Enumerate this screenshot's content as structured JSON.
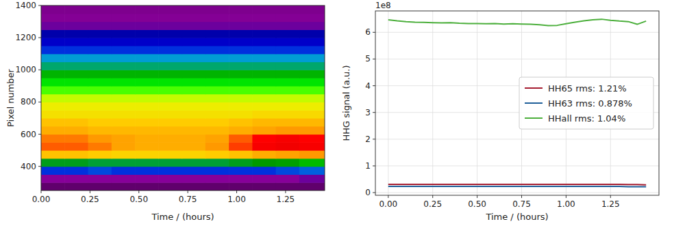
{
  "chart_data": [
    {
      "type": "heatmap",
      "x_label": "Time / (hours)",
      "y_label": "Pixel number",
      "xlim": [
        0,
        1.45
      ],
      "ylim": [
        250,
        1400
      ],
      "xticks": [
        {
          "value": 0,
          "label": "0.00"
        },
        {
          "value": 0.25,
          "label": "0.25"
        },
        {
          "value": 0.5,
          "label": "0.50"
        },
        {
          "value": 0.75,
          "label": "0.75"
        },
        {
          "value": 1,
          "label": "1.00"
        },
        {
          "value": 1.25,
          "label": "1.25"
        }
      ],
      "yticks": [
        400,
        600,
        800,
        1000,
        1200,
        1400
      ],
      "grid": false,
      "zlim": [
        0,
        1
      ],
      "x_edges": [
        0,
        0.12,
        0.24,
        0.36,
        0.48,
        0.6,
        0.72,
        0.84,
        0.96,
        1.08,
        1.2,
        1.32,
        1.45
      ],
      "y_edges": [
        250,
        300,
        350,
        400,
        450,
        500,
        550,
        600,
        650,
        700,
        750,
        800,
        850,
        900,
        950,
        1000,
        1050,
        1100,
        1150,
        1200,
        1250,
        1300,
        1350,
        1400
      ],
      "cells": [
        [
          0.04,
          0.04,
          0.04,
          0.04,
          0.04,
          0.04,
          0.04,
          0.04,
          0.04,
          0.04,
          0.04,
          0.04
        ],
        [
          0.1,
          0.1,
          0.1,
          0.1,
          0.1,
          0.1,
          0.1,
          0.1,
          0.1,
          0.1,
          0.1,
          0.11
        ],
        [
          0.22,
          0.22,
          0.23,
          0.22,
          0.22,
          0.22,
          0.22,
          0.22,
          0.22,
          0.22,
          0.23,
          0.24
        ],
        [
          0.44,
          0.44,
          0.43,
          0.43,
          0.43,
          0.43,
          0.43,
          0.43,
          0.44,
          0.45,
          0.46,
          0.5
        ],
        [
          0.76,
          0.76,
          0.75,
          0.74,
          0.74,
          0.74,
          0.74,
          0.75,
          0.76,
          0.78,
          0.79,
          0.8
        ],
        [
          0.82,
          0.82,
          0.81,
          0.79,
          0.78,
          0.78,
          0.78,
          0.8,
          0.83,
          0.86,
          0.87,
          0.86
        ],
        [
          0.81,
          0.81,
          0.8,
          0.79,
          0.78,
          0.78,
          0.78,
          0.79,
          0.82,
          0.85,
          0.86,
          0.85
        ],
        [
          0.78,
          0.78,
          0.77,
          0.77,
          0.77,
          0.77,
          0.77,
          0.77,
          0.78,
          0.79,
          0.8,
          0.8
        ],
        [
          0.76,
          0.76,
          0.75,
          0.75,
          0.75,
          0.75,
          0.75,
          0.75,
          0.76,
          0.77,
          0.77,
          0.77
        ],
        [
          0.72,
          0.72,
          0.72,
          0.72,
          0.72,
          0.72,
          0.72,
          0.72,
          0.72,
          0.73,
          0.73,
          0.73
        ],
        [
          0.7,
          0.7,
          0.7,
          0.7,
          0.7,
          0.7,
          0.7,
          0.7,
          0.7,
          0.7,
          0.7,
          0.7
        ],
        [
          0.66,
          0.66,
          0.66,
          0.66,
          0.66,
          0.66,
          0.66,
          0.66,
          0.66,
          0.66,
          0.66,
          0.66
        ],
        [
          0.62,
          0.62,
          0.62,
          0.62,
          0.62,
          0.62,
          0.62,
          0.62,
          0.62,
          0.62,
          0.62,
          0.62
        ],
        [
          0.56,
          0.56,
          0.56,
          0.56,
          0.56,
          0.56,
          0.56,
          0.56,
          0.56,
          0.56,
          0.56,
          0.56
        ],
        [
          0.49,
          0.49,
          0.49,
          0.49,
          0.49,
          0.49,
          0.49,
          0.49,
          0.49,
          0.49,
          0.49,
          0.49
        ],
        [
          0.41,
          0.41,
          0.41,
          0.41,
          0.41,
          0.41,
          0.41,
          0.41,
          0.41,
          0.41,
          0.41,
          0.41
        ],
        [
          0.31,
          0.31,
          0.31,
          0.31,
          0.31,
          0.31,
          0.31,
          0.31,
          0.31,
          0.31,
          0.31,
          0.31
        ],
        [
          0.22,
          0.22,
          0.22,
          0.22,
          0.22,
          0.22,
          0.22,
          0.22,
          0.22,
          0.22,
          0.22,
          0.22
        ],
        [
          0.18,
          0.18,
          0.18,
          0.18,
          0.18,
          0.18,
          0.18,
          0.18,
          0.18,
          0.18,
          0.18,
          0.18
        ],
        [
          0.15,
          0.15,
          0.15,
          0.15,
          0.15,
          0.15,
          0.15,
          0.15,
          0.15,
          0.15,
          0.15,
          0.15
        ],
        [
          0.11,
          0.11,
          0.11,
          0.11,
          0.11,
          0.11,
          0.11,
          0.11,
          0.11,
          0.11,
          0.11,
          0.11
        ],
        [
          0.09,
          0.09,
          0.09,
          0.09,
          0.09,
          0.09,
          0.09,
          0.09,
          0.09,
          0.09,
          0.09,
          0.09
        ],
        [
          0.07,
          0.07,
          0.07,
          0.07,
          0.07,
          0.07,
          0.07,
          0.07,
          0.07,
          0.07,
          0.07,
          0.07
        ]
      ]
    },
    {
      "type": "line",
      "x_label": "Time / (hours)",
      "y_label": "HHG signal (a.u.)",
      "annotations": [
        "1e8"
      ],
      "xlim": [
        -0.0725,
        1.5225
      ],
      "ylim": [
        -0.1,
        6.8
      ],
      "xticks": [
        {
          "value": 0,
          "label": "0.00"
        },
        {
          "value": 0.25,
          "label": "0.25"
        },
        {
          "value": 0.5,
          "label": "0.50"
        },
        {
          "value": 0.75,
          "label": "0.75"
        },
        {
          "value": 1,
          "label": "1.00"
        },
        {
          "value": 1.25,
          "label": "1.25"
        }
      ],
      "yticks": [
        0,
        1,
        2,
        3,
        4,
        5,
        6
      ],
      "grid": true,
      "legend": "center right",
      "x": [
        0,
        0.05,
        0.1,
        0.15,
        0.2,
        0.25,
        0.3,
        0.35,
        0.4,
        0.45,
        0.5,
        0.55,
        0.6,
        0.65,
        0.7,
        0.75,
        0.8,
        0.85,
        0.9,
        0.95,
        1,
        1.05,
        1.1,
        1.15,
        1.2,
        1.25,
        1.3,
        1.35,
        1.4,
        1.45
      ],
      "series": [
        {
          "name": "HH65 rms: 1.21%",
          "color": "#a51c30",
          "values": [
            0.31,
            0.31,
            0.31,
            0.31,
            0.31,
            0.31,
            0.31,
            0.31,
            0.31,
            0.31,
            0.31,
            0.31,
            0.31,
            0.31,
            0.31,
            0.31,
            0.31,
            0.31,
            0.31,
            0.31,
            0.31,
            0.31,
            0.31,
            0.31,
            0.31,
            0.31,
            0.31,
            0.3,
            0.3,
            0.29
          ]
        },
        {
          "name": "HH63 rms: 0.878%",
          "color": "#1f5f99",
          "values": [
            0.23,
            0.23,
            0.23,
            0.23,
            0.23,
            0.23,
            0.23,
            0.23,
            0.23,
            0.23,
            0.23,
            0.23,
            0.23,
            0.23,
            0.23,
            0.23,
            0.23,
            0.23,
            0.23,
            0.23,
            0.23,
            0.23,
            0.23,
            0.23,
            0.23,
            0.23,
            0.23,
            0.22,
            0.22,
            0.22
          ]
        },
        {
          "name": "HHall rms: 1.04%",
          "color": "#4caf3c",
          "values": [
            6.47,
            6.43,
            6.4,
            6.38,
            6.37,
            6.36,
            6.35,
            6.36,
            6.34,
            6.33,
            6.33,
            6.32,
            6.33,
            6.31,
            6.32,
            6.31,
            6.3,
            6.28,
            6.25,
            6.26,
            6.32,
            6.38,
            6.43,
            6.47,
            6.49,
            6.45,
            6.42,
            6.4,
            6.3,
            6.42
          ]
        }
      ]
    }
  ]
}
